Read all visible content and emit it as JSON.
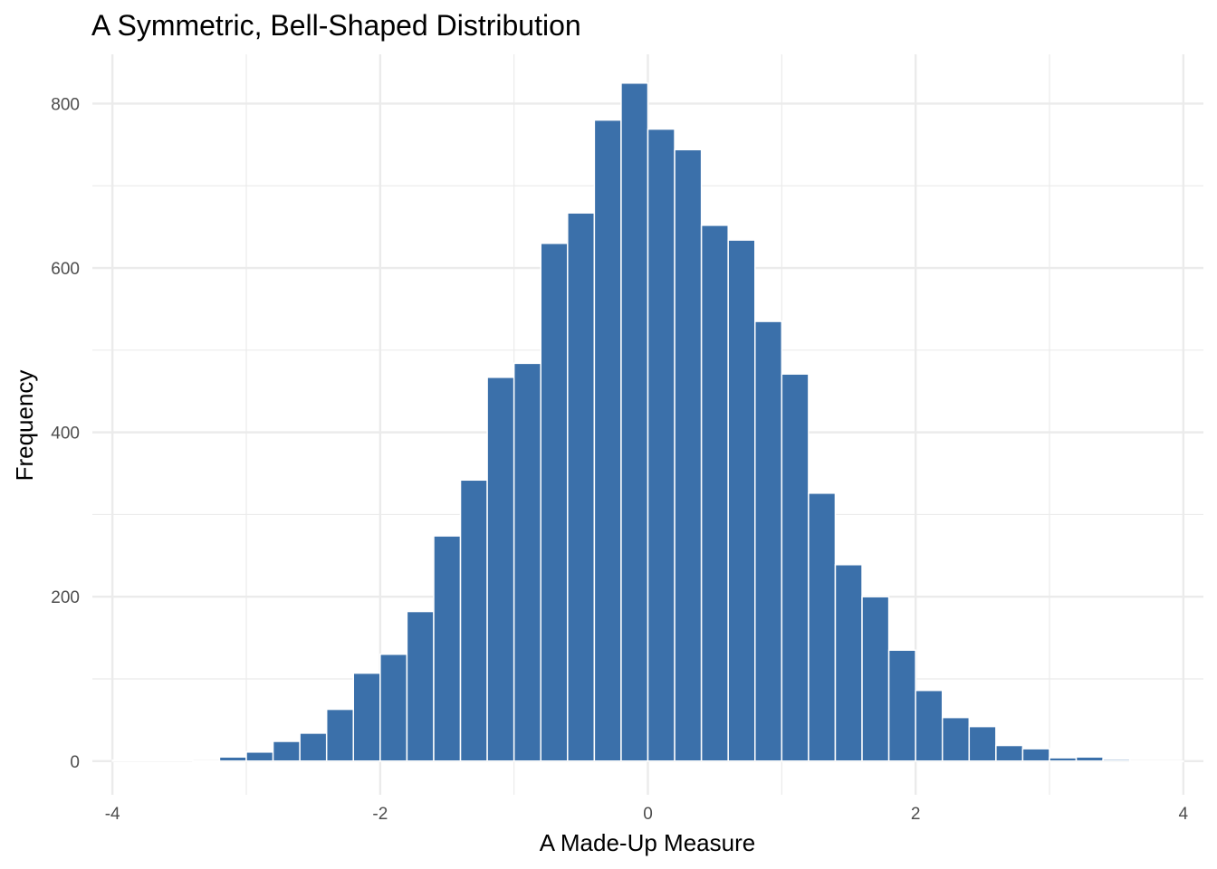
{
  "chart_data": {
    "type": "bar",
    "title": "A Symmetric, Bell-Shaped Distribution",
    "xlabel": "A Made-Up Measure",
    "ylabel": "Frequency",
    "bar_color": "#3b70aa",
    "grid": true,
    "xlim": [
      -4.15,
      4.15
    ],
    "ylim": [
      -41,
      860
    ],
    "x_ticks": [
      -4,
      -2,
      0,
      2,
      4
    ],
    "x_tick_labels": [
      "-4",
      "-2",
      "0",
      "2",
      "4"
    ],
    "y_ticks": [
      0,
      200,
      400,
      600,
      800
    ],
    "y_tick_labels": [
      "0",
      "200",
      "400",
      "600",
      "800"
    ],
    "bin_width": 0.2,
    "bins": [
      {
        "x": -3.9,
        "count": 1
      },
      {
        "x": -3.7,
        "count": 1
      },
      {
        "x": -3.5,
        "count": 1
      },
      {
        "x": -3.3,
        "count": 0
      },
      {
        "x": -3.1,
        "count": 5
      },
      {
        "x": -2.9,
        "count": 11
      },
      {
        "x": -2.7,
        "count": 24
      },
      {
        "x": -2.5,
        "count": 34
      },
      {
        "x": -2.3,
        "count": 63
      },
      {
        "x": -2.1,
        "count": 107
      },
      {
        "x": -1.9,
        "count": 130
      },
      {
        "x": -1.7,
        "count": 182
      },
      {
        "x": -1.5,
        "count": 274
      },
      {
        "x": -1.3,
        "count": 342
      },
      {
        "x": -1.1,
        "count": 467
      },
      {
        "x": -0.9,
        "count": 484
      },
      {
        "x": -0.7,
        "count": 630
      },
      {
        "x": -0.5,
        "count": 667
      },
      {
        "x": -0.3,
        "count": 780
      },
      {
        "x": -0.1,
        "count": 825
      },
      {
        "x": 0.1,
        "count": 769
      },
      {
        "x": 0.3,
        "count": 744
      },
      {
        "x": 0.5,
        "count": 652
      },
      {
        "x": 0.7,
        "count": 634
      },
      {
        "x": 0.9,
        "count": 535
      },
      {
        "x": 1.1,
        "count": 471
      },
      {
        "x": 1.3,
        "count": 326
      },
      {
        "x": 1.5,
        "count": 239
      },
      {
        "x": 1.7,
        "count": 200
      },
      {
        "x": 1.9,
        "count": 135
      },
      {
        "x": 2.1,
        "count": 86
      },
      {
        "x": 2.3,
        "count": 53
      },
      {
        "x": 2.5,
        "count": 42
      },
      {
        "x": 2.7,
        "count": 19
      },
      {
        "x": 2.9,
        "count": 15
      },
      {
        "x": 3.1,
        "count": 4
      },
      {
        "x": 3.3,
        "count": 5
      },
      {
        "x": 3.5,
        "count": 2
      },
      {
        "x": 3.7,
        "count": 0
      },
      {
        "x": 3.9,
        "count": 0
      }
    ]
  }
}
